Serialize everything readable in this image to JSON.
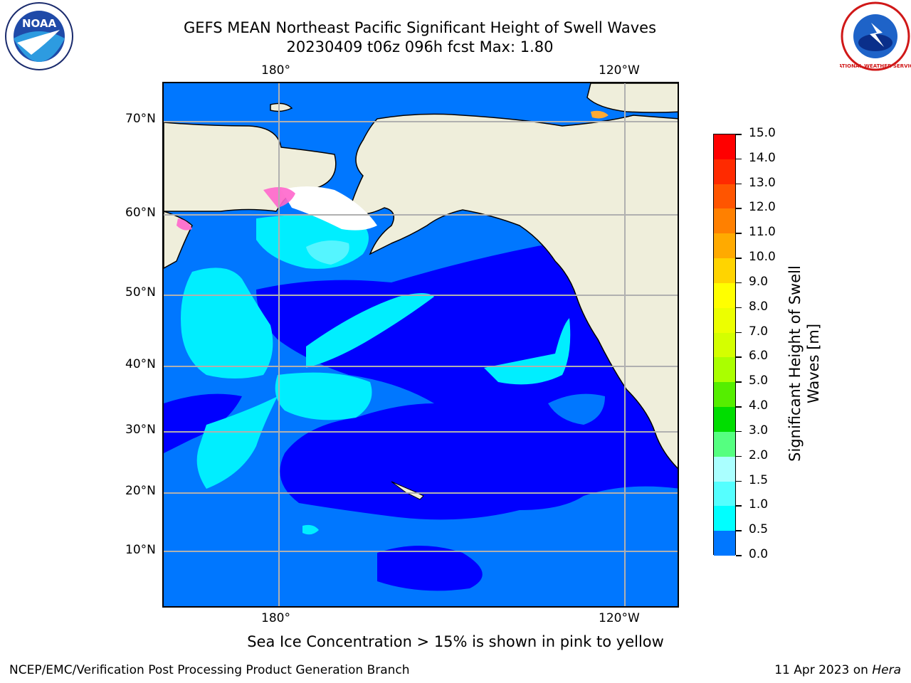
{
  "header": {
    "title_line1": "GEFS MEAN Northeast Pacific Significant Height of Swell Waves",
    "title_line2": "20230409 t06z 096h fcst   Max: 1.80"
  },
  "logos": {
    "left_text": "NOAA",
    "right_text": "NATIONAL WEATHER SERVICE"
  },
  "map": {
    "lon_labels_top": [
      "180°",
      "120°W"
    ],
    "lon_labels_bottom": [
      "180°",
      "120°W"
    ],
    "lat_labels": [
      "70°N",
      "60°N",
      "50°N",
      "40°N",
      "30°N",
      "20°N",
      "10°N"
    ],
    "colors": {
      "land": "#efeedb",
      "ocean_0": "#0000ff",
      "ocean_05": "#0077ff",
      "ocean_1": "#00eeff",
      "ocean_15": "#55f5ff",
      "grid": "#b0b0b0",
      "ice": "#ff66cc"
    }
  },
  "colorbar": {
    "title": "Significant Height of Swell Waves [m]",
    "labels": [
      "15.0",
      "14.0",
      "13.0",
      "12.0",
      "11.0",
      "10.0",
      "9.0",
      "8.0",
      "7.0",
      "6.0",
      "5.0",
      "4.0",
      "3.0",
      "2.0",
      "1.5",
      "1.0",
      "0.5",
      "0.0"
    ],
    "colors": [
      "#ff0000",
      "#ff2a00",
      "#ff5500",
      "#ff8000",
      "#ffaa00",
      "#ffd400",
      "#ffff00",
      "#ecff00",
      "#d4ff00",
      "#aaff00",
      "#55ee00",
      "#00dd00",
      "#55ff80",
      "#aaffff",
      "#55ffff",
      "#00ffff",
      "#0077ff",
      "#0000ff"
    ]
  },
  "note": "Sea Ice Concentration > 15% is shown in pink to yellow",
  "footer": {
    "left": "NCEP/EMC/Verification Post Processing Product Generation Branch",
    "right_prefix": "11 Apr 2023 on ",
    "right_host": "Hera"
  }
}
